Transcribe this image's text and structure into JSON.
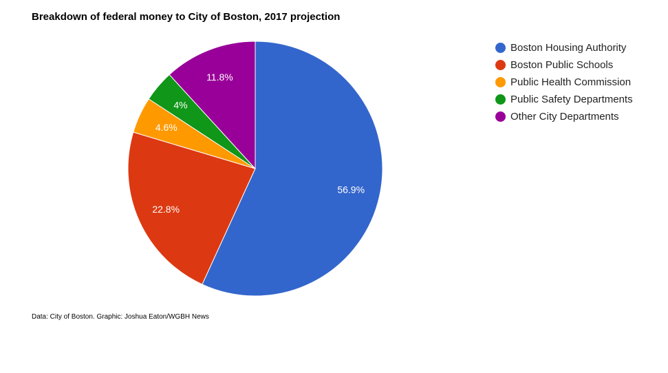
{
  "chart_data": {
    "type": "pie",
    "title": "Breakdown of federal money to City of Boston, 2017 projection",
    "slices": [
      {
        "name": "Boston Housing Authority",
        "value": 56.9,
        "label": "56.9%",
        "color": "#3366cc"
      },
      {
        "name": "Boston Public Schools",
        "value": 22.8,
        "label": "22.8%",
        "color": "#dc3912"
      },
      {
        "name": "Public Health Commission",
        "value": 4.6,
        "label": "4.6%",
        "color": "#ff9900"
      },
      {
        "name": "Public Safety Departments",
        "value": 4.0,
        "label": "4%",
        "color": "#109618"
      },
      {
        "name": "Other City Departments",
        "value": 11.8,
        "label": "11.8%",
        "color": "#990099"
      }
    ],
    "legend_position": "right",
    "note": "Data: City of Boston. Graphic: Joshua Eaton/WGBH News"
  }
}
